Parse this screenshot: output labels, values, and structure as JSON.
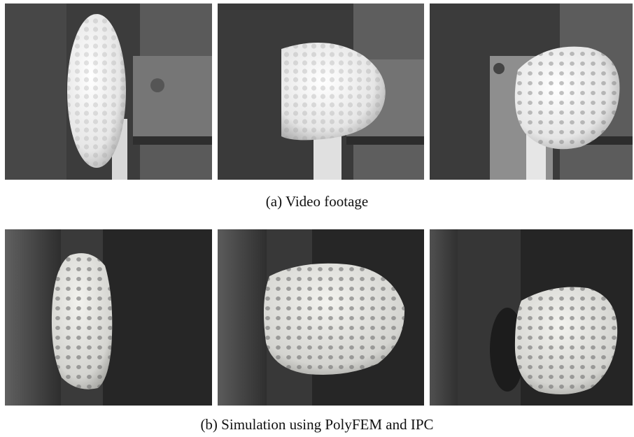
{
  "figure": {
    "caption_a": "(a)  Video footage",
    "caption_b": "(b)  Simulation using PolyFEM and IPC"
  }
}
